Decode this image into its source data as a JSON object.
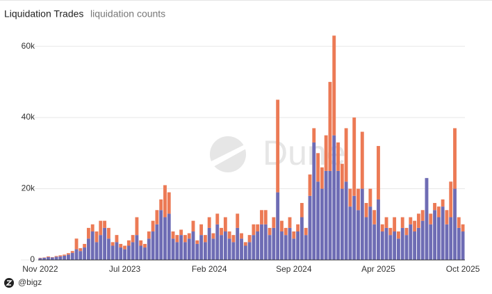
{
  "chart_data": {
    "type": "bar",
    "stacked": true,
    "title": "Liquidation Trades",
    "subtitle": "liquidation counts",
    "watermark": "Dune",
    "footer": "@bigz",
    "categories": [
      "Nov 2022",
      null,
      null,
      null,
      null,
      null,
      null,
      null,
      null,
      null,
      null,
      null,
      null,
      null,
      null,
      null,
      null,
      null,
      null,
      null,
      null,
      "Jul 2023",
      null,
      null,
      null,
      null,
      null,
      null,
      null,
      null,
      null,
      null,
      null,
      null,
      null,
      null,
      null,
      null,
      null,
      null,
      null,
      null,
      "Feb 2024",
      null,
      null,
      null,
      null,
      null,
      null,
      null,
      null,
      null,
      null,
      null,
      null,
      null,
      null,
      null,
      null,
      null,
      null,
      null,
      null,
      "Sep 2024",
      null,
      null,
      null,
      null,
      null,
      null,
      null,
      null,
      null,
      null,
      null,
      null,
      null,
      null,
      null,
      null,
      null,
      null,
      null,
      null,
      "Apr 2025",
      null,
      null,
      null,
      null,
      null,
      null,
      null,
      null,
      null,
      null,
      null,
      null,
      null,
      null,
      null,
      null,
      null,
      null,
      null,
      null,
      "Oct 2025"
    ],
    "series": [
      {
        "color": "#6e6cb4",
        "values": [
          500,
          600,
          800,
          700,
          900,
          1000,
          1200,
          1500,
          2000,
          3000,
          2500,
          3500,
          6000,
          8000,
          5000,
          7000,
          9000,
          6000,
          4000,
          5000,
          3500,
          3000,
          4000,
          5000,
          7000,
          4000,
          3500,
          6000,
          8000,
          10000,
          14000,
          12000,
          13000,
          6000,
          5000,
          7000,
          5000,
          6000,
          8000,
          4500,
          7000,
          5000,
          9000,
          6000,
          10000,
          7000,
          8000,
          6000,
          5000,
          9000,
          6000,
          4000,
          5000,
          7000,
          8000,
          10000,
          10000,
          7000,
          9000,
          19000,
          8000,
          7000,
          9000,
          6000,
          8000,
          12000,
          7000,
          18000,
          33000,
          22000,
          20000,
          25000,
          25000,
          35000,
          25000,
          20000,
          22000,
          15000,
          18000,
          14000,
          20000,
          12000,
          15000,
          10000,
          17000,
          8000,
          9000,
          7000,
          8000,
          6000,
          9000,
          7000,
          10000,
          8000,
          9000,
          11000,
          23000,
          10000,
          14000,
          12000,
          15000,
          10000,
          12000,
          20000,
          9000,
          8000
        ]
      },
      {
        "color": "#ec7a55",
        "values": [
          100,
          100,
          200,
          100,
          200,
          300,
          300,
          400,
          500,
          3000,
          800,
          1000,
          3000,
          2000,
          3000,
          4000,
          2000,
          3000,
          1000,
          2000,
          1000,
          1000,
          1500,
          2000,
          5000,
          1500,
          1000,
          2000,
          3000,
          4000,
          3000,
          9000,
          6000,
          2000,
          2000,
          1500,
          2000,
          1500,
          3000,
          1000,
          3000,
          2000,
          3000,
          1500,
          3000,
          2000,
          4000,
          2000,
          2000,
          4000,
          1500,
          1000,
          2000,
          3000,
          2000,
          4000,
          4000,
          2000,
          3000,
          26000,
          3000,
          2000,
          3000,
          2000,
          2000,
          4000,
          2000,
          6000,
          4000,
          8000,
          6000,
          10000,
          25000,
          28000,
          8000,
          7000,
          15000,
          5000,
          22000,
          6000,
          16000,
          4000,
          5000,
          4000,
          15000,
          2000,
          3000,
          2000,
          4000,
          2000,
          3000,
          2000,
          2000,
          3000,
          4000,
          3000,
          0,
          3000,
          2000,
          3000,
          2000,
          4000,
          10000,
          17000,
          3000,
          2000
        ]
      }
    ],
    "ylim": [
      0,
      65000
    ],
    "yticks": [
      0,
      {
        "value": 20000,
        "label": "20k"
      },
      {
        "value": 40000,
        "label": "40k"
      },
      {
        "value": 60000,
        "label": "60k"
      }
    ],
    "grid": true
  }
}
